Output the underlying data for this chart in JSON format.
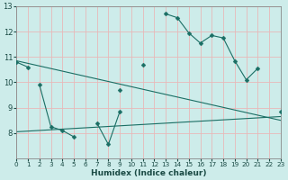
{
  "xlabel": "Humidex (Indice chaleur)",
  "background_color": "#cdecea",
  "grid_color": "#e8b8b8",
  "line_color": "#1a6e64",
  "x_min": 0,
  "x_max": 23,
  "y_min": 7,
  "y_max": 13,
  "series": [
    {
      "x": [
        0,
        1,
        2,
        3,
        4,
        5,
        6,
        7,
        8,
        9,
        10,
        11,
        12,
        13,
        14,
        15,
        16,
        17,
        18,
        19,
        20,
        21,
        22,
        23
      ],
      "y": [
        10.8,
        10.6,
        null,
        null,
        null,
        null,
        null,
        null,
        null,
        9.7,
        null,
        10.7,
        null,
        12.7,
        12.55,
        11.95,
        11.55,
        11.85,
        11.75,
        10.85,
        10.1,
        10.55,
        null,
        8.85
      ],
      "has_marker": true
    },
    {
      "x": [
        0,
        1,
        2,
        3,
        4,
        5,
        6,
        7,
        8,
        9,
        10,
        11,
        12,
        13,
        14,
        15,
        16,
        17,
        18,
        19,
        20,
        21,
        22,
        23
      ],
      "y": [
        null,
        null,
        9.9,
        8.25,
        8.1,
        7.85,
        null,
        8.4,
        7.55,
        8.85,
        null,
        null,
        null,
        null,
        null,
        null,
        null,
        null,
        null,
        null,
        null,
        null,
        null,
        null
      ],
      "has_marker": true
    },
    {
      "x": [
        0,
        23
      ],
      "y": [
        10.85,
        8.5
      ],
      "has_marker": false
    },
    {
      "x": [
        0,
        23
      ],
      "y": [
        8.05,
        8.65
      ],
      "has_marker": false
    }
  ]
}
